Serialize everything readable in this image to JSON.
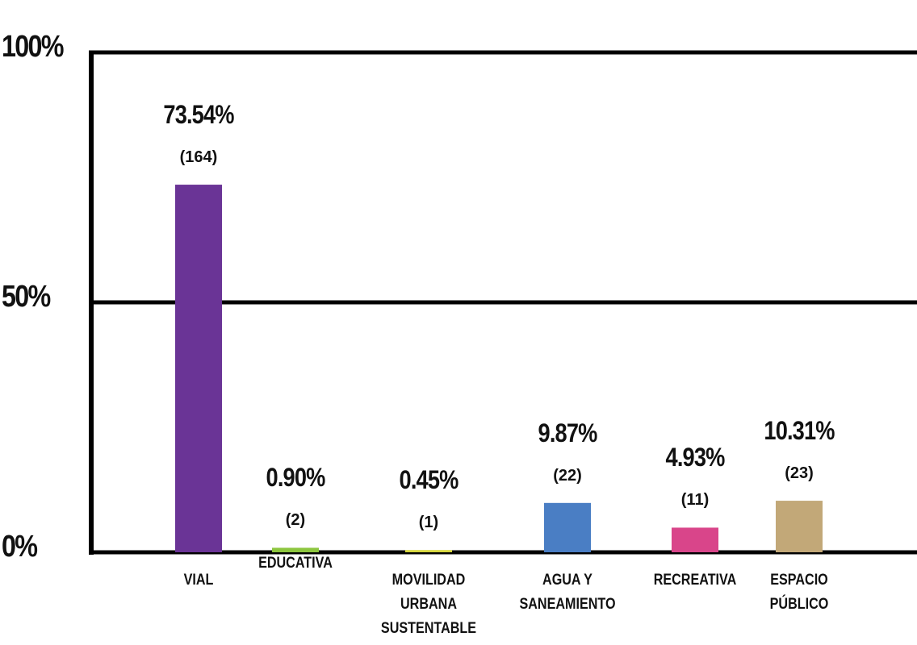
{
  "chart_data": {
    "type": "bar",
    "categories": [
      "VIAL",
      "EDUCATIVA",
      "MOVILIDAD URBANA SUSTENTABLE",
      "AGUA Y SANEAMIENTO",
      "RECREATIVA",
      "ESPACIO PÚBLICO"
    ],
    "values": [
      73.54,
      0.9,
      0.45,
      9.87,
      4.93,
      10.31
    ],
    "value_labels": [
      "73.54%",
      "0.90%",
      "0.45%",
      "9.87%",
      "4.93%",
      "10.31%"
    ],
    "count_labels": [
      "(164)",
      "(2)",
      "(1)",
      "(22)",
      "(11)",
      "(23)"
    ],
    "colors": [
      "#6a3496",
      "#8dc63f",
      "#d6d63c",
      "#4a7ec4",
      "#d9458a",
      "#c2a878"
    ],
    "ylim": [
      0,
      100
    ],
    "yticks": [
      {
        "value": 0,
        "label": "0%"
      },
      {
        "value": 50,
        "label": "50%"
      },
      {
        "value": 100,
        "label": "100%"
      }
    ],
    "grid": true
  }
}
